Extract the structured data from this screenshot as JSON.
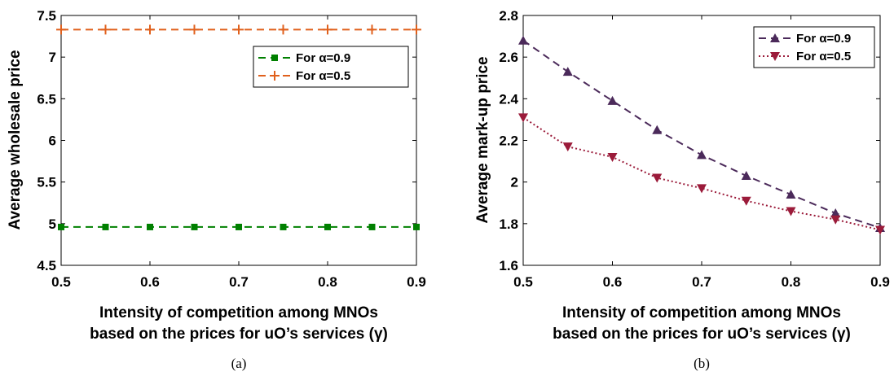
{
  "chart_data": [
    {
      "type": "line",
      "caption": "(a)",
      "xlabel": [
        "Intensity  of competition among MNOs",
        "based on the prices for uO’s services (γ)"
      ],
      "ylabel": "Average wholesale price",
      "xlim": [
        0.5,
        0.9
      ],
      "ylim": [
        4.5,
        7.5
      ],
      "x_ticks": [
        "0.5",
        "0.6",
        "0.7",
        "0.8",
        "0.9"
      ],
      "y_ticks": [
        "4.5",
        "5",
        "5.5",
        "6",
        "6.5",
        "7",
        "7.5"
      ],
      "grid": false,
      "legend_position": "upper-right",
      "x": [
        0.5,
        0.55,
        0.6,
        0.65,
        0.7,
        0.75,
        0.8,
        0.85,
        0.9
      ],
      "series": [
        {
          "name": "For α=0.9",
          "color": "#008000",
          "marker": "square",
          "line": "dashed",
          "values": [
            4.96,
            4.96,
            4.96,
            4.96,
            4.96,
            4.96,
            4.96,
            4.96,
            4.96
          ]
        },
        {
          "name": "For α=0.5",
          "color": "#e0601c",
          "marker": "plus",
          "line": "dashed",
          "values": [
            7.33,
            7.33,
            7.33,
            7.33,
            7.33,
            7.33,
            7.33,
            7.33,
            7.33
          ]
        }
      ]
    },
    {
      "type": "line",
      "caption": "(b)",
      "xlabel": [
        "Intensity  of competition among MNOs",
        "based on the prices for uO’s services (γ)"
      ],
      "ylabel": "Average mark-up price",
      "xlim": [
        0.5,
        0.9
      ],
      "ylim": [
        1.6,
        2.8
      ],
      "x_ticks": [
        "0.5",
        "0.6",
        "0.7",
        "0.8",
        "0.9"
      ],
      "y_ticks": [
        "1.6",
        "1.8",
        "2",
        "2.2",
        "2.4",
        "2.6",
        "2.8"
      ],
      "grid": false,
      "legend_position": "upper-right",
      "x": [
        0.5,
        0.55,
        0.6,
        0.65,
        0.7,
        0.75,
        0.8,
        0.85,
        0.9
      ],
      "series": [
        {
          "name": "For α=0.9",
          "color": "#4b2a5a",
          "marker": "triangle-up",
          "line": "dashed",
          "values": [
            2.68,
            2.53,
            2.39,
            2.25,
            2.13,
            2.03,
            1.94,
            1.85,
            1.78
          ]
        },
        {
          "name": "For α=0.5",
          "color": "#9b1b3a",
          "marker": "triangle-down",
          "line": "dotted",
          "values": [
            2.31,
            2.17,
            2.12,
            2.02,
            1.97,
            1.91,
            1.86,
            1.82,
            1.77
          ]
        }
      ]
    }
  ]
}
